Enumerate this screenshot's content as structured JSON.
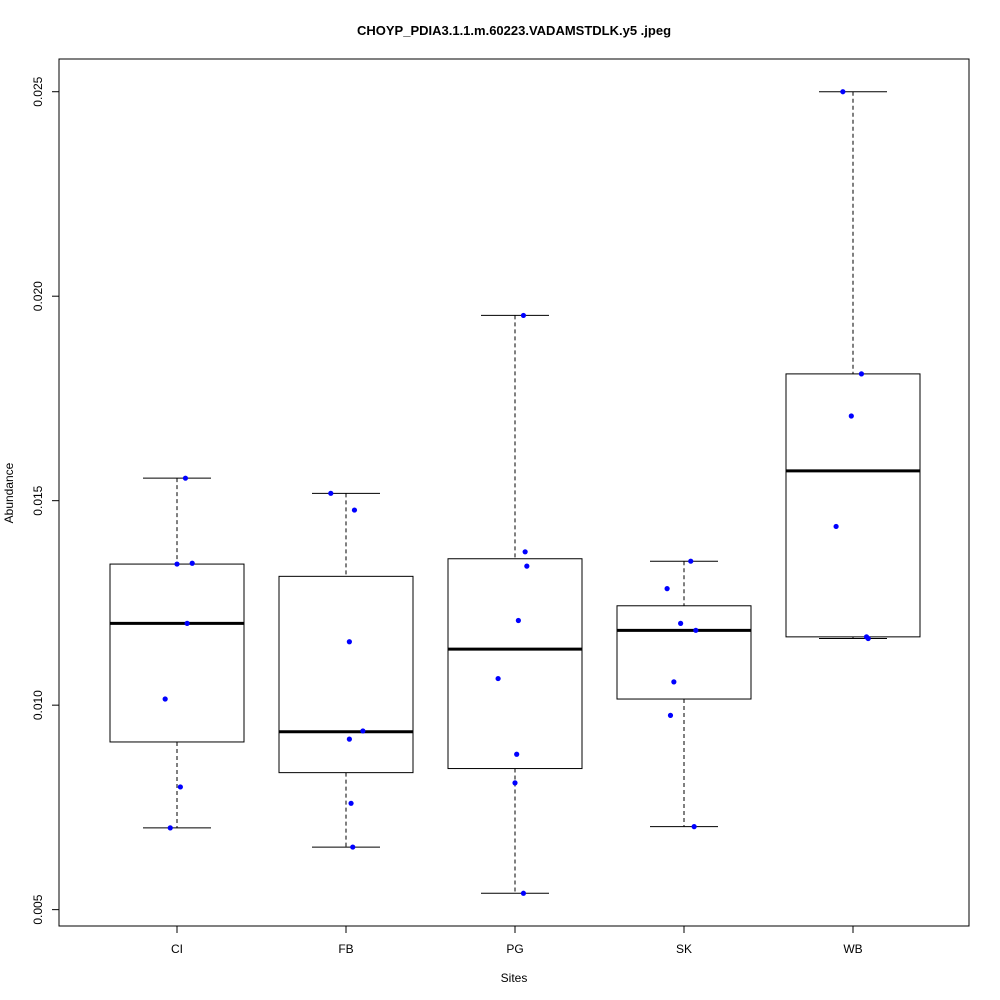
{
  "chart_data": {
    "type": "boxplot",
    "title": "CHOYP_PDIA3.1.1.m.60223.VADAMSTDLK.y5 .jpeg",
    "xlabel": "Sites",
    "ylabel": "Abundance",
    "ylim": [
      0.0046,
      0.0258
    ],
    "yticks": [
      0.005,
      0.01,
      0.015,
      0.02,
      0.025
    ],
    "ytick_labels": [
      "0.005",
      "0.010",
      "0.015",
      "0.020",
      "0.025"
    ],
    "categories": [
      "CI",
      "FB",
      "PG",
      "SK",
      "WB"
    ],
    "boxes": [
      {
        "whisker_low": 0.007,
        "q1": 0.0091,
        "median": 0.012,
        "q3": 0.01345,
        "whisker_high": 0.01555
      },
      {
        "whisker_low": 0.00653,
        "q1": 0.00835,
        "median": 0.00935,
        "q3": 0.01315,
        "whisker_high": 0.01518
      },
      {
        "whisker_low": 0.0054,
        "q1": 0.00845,
        "median": 0.01137,
        "q3": 0.01358,
        "whisker_high": 0.01953
      },
      {
        "whisker_low": 0.00703,
        "q1": 0.01015,
        "median": 0.01183,
        "q3": 0.01243,
        "whisker_high": 0.01352
      },
      {
        "whisker_low": 0.01163,
        "q1": 0.01167,
        "median": 0.01573,
        "q3": 0.0181,
        "whisker_high": 0.025
      }
    ],
    "points": [
      {
        "category": "CI",
        "values": [
          0.01555,
          0.01345,
          0.01347,
          0.012,
          0.01015,
          0.008,
          0.007
        ],
        "jitter": [
          0.05,
          0.0,
          0.09,
          0.06,
          -0.07,
          0.02,
          -0.04
        ]
      },
      {
        "category": "FB",
        "values": [
          0.01518,
          0.01477,
          0.01155,
          0.00937,
          0.00917,
          0.0076,
          0.00653
        ],
        "jitter": [
          -0.09,
          0.05,
          0.02,
          0.1,
          0.02,
          0.03,
          0.04
        ]
      },
      {
        "category": "PG",
        "values": [
          0.01953,
          0.01375,
          0.0134,
          0.01207,
          0.01065,
          0.0088,
          0.0081,
          0.0054
        ],
        "jitter": [
          0.05,
          0.06,
          0.07,
          0.02,
          -0.1,
          0.01,
          0.0,
          0.05
        ]
      },
      {
        "category": "SK",
        "values": [
          0.01352,
          0.01285,
          0.012,
          0.01183,
          0.01057,
          0.00975,
          0.00703
        ],
        "jitter": [
          0.04,
          -0.1,
          -0.02,
          0.07,
          -0.06,
          -0.08,
          0.06
        ]
      },
      {
        "category": "WB",
        "values": [
          0.025,
          0.0181,
          0.01707,
          0.01437,
          0.01167,
          0.01163
        ],
        "jitter": [
          -0.06,
          0.05,
          -0.01,
          -0.1,
          0.08,
          0.09
        ]
      }
    ],
    "box_color": "#000000",
    "point_color": "#0000ff",
    "grid": false,
    "legend": "none"
  }
}
